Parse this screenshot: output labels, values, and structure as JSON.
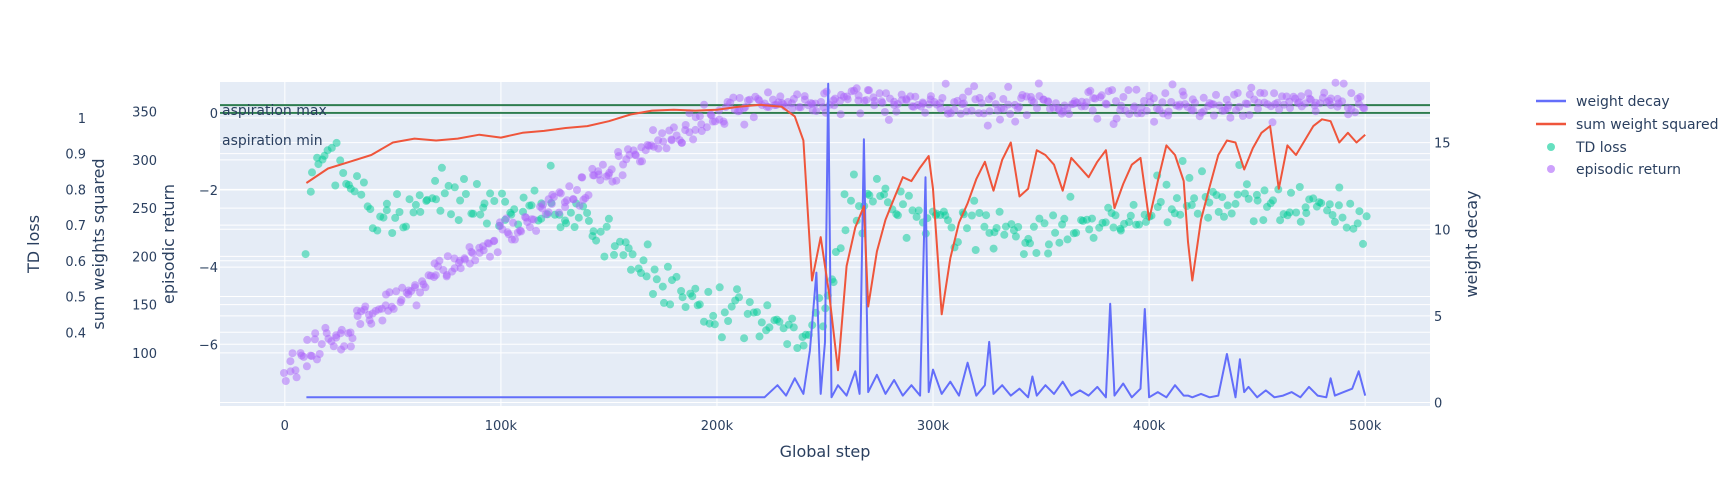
{
  "chart_data": {
    "type": "line+scatter",
    "xlabel": "Global step",
    "x_ticks": [
      {
        "value": 0,
        "label": "0"
      },
      {
        "value": 100000,
        "label": "100k"
      },
      {
        "value": 200000,
        "label": "200k"
      },
      {
        "value": 300000,
        "label": "300k"
      },
      {
        "value": 400000,
        "label": "400k"
      },
      {
        "value": 500000,
        "label": "500k"
      }
    ],
    "xlim": [
      -30000,
      530000
    ],
    "axes": {
      "td_loss": {
        "title": "TD loss",
        "range": [
          0.3,
          1.05
        ],
        "ticks": [
          0.4,
          0.5,
          0.6,
          0.7,
          0.8,
          0.9,
          1
        ]
      },
      "sum_weights_squared": {
        "title": "sum weights squared",
        "range": [
          75,
          362
        ],
        "ticks": [
          100,
          150,
          200,
          250,
          300,
          350
        ]
      },
      "episodic_return": {
        "title": "episodic return",
        "range": [
          -7.6,
          0.8
        ],
        "ticks": [
          -6,
          -4,
          -2,
          0
        ],
        "tick_labels": [
          "−6",
          "−4",
          "−2",
          "0"
        ]
      },
      "weight_decay": {
        "title": "weight decay",
        "range": [
          -0.2,
          18.5
        ],
        "ticks": [
          0,
          5,
          10,
          15
        ]
      }
    },
    "annotations": [
      {
        "text": "aspiration max",
        "y": 0.2
      },
      {
        "text": "aspiration min",
        "y": 0.0
      }
    ],
    "legend_position": "top-right",
    "colors": {
      "weight_decay": "#636efa",
      "sum_weight_squared": "#ef553b",
      "td_loss": "#00cc96",
      "episodic_return": "#ab63fa",
      "aspiration": "#2e7d4f",
      "plot_bg": "#e5ecf6",
      "grid": "#ffffff",
      "text": "#2a3f5f"
    },
    "series": [
      {
        "name": "weight decay",
        "type": "line",
        "axis": "weight_decay",
        "x": [
          10000,
          100000,
          200000,
          222000,
          228000,
          232000,
          236000,
          240000,
          243000,
          246000,
          248000,
          250000,
          251500,
          253000,
          256000,
          260000,
          264000,
          266000,
          268000,
          270000,
          274000,
          278000,
          282000,
          286000,
          290000,
          294000,
          296500,
          298000,
          300000,
          304000,
          308000,
          312000,
          316000,
          320000,
          324000,
          326000,
          328000,
          332000,
          336000,
          340000,
          344000,
          346000,
          348000,
          352000,
          356000,
          360000,
          364000,
          368000,
          372000,
          376000,
          380000,
          382000,
          384000,
          388000,
          392000,
          396000,
          398000,
          400000,
          404000,
          408000,
          412000,
          416000,
          418000,
          420000,
          424000,
          428000,
          432000,
          436000,
          440000,
          442000,
          444000,
          446000,
          450000,
          454000,
          458000,
          462000,
          466000,
          470000,
          474000,
          478000,
          482000,
          484000,
          486000,
          490000,
          494000,
          497000,
          500000
        ],
        "y": [
          0.3,
          0.3,
          0.3,
          0.3,
          1.0,
          0.4,
          1.4,
          0.5,
          3.0,
          7.5,
          0.5,
          3.5,
          18.4,
          0.3,
          1.0,
          0.4,
          1.8,
          0.5,
          15.2,
          0.6,
          1.6,
          0.5,
          1.3,
          0.4,
          1.0,
          0.4,
          13.0,
          0.6,
          1.9,
          0.5,
          1.2,
          0.4,
          2.3,
          0.4,
          1.0,
          3.5,
          0.5,
          1.0,
          0.4,
          0.8,
          0.3,
          1.5,
          0.4,
          1.0,
          0.5,
          1.2,
          0.4,
          0.7,
          0.4,
          0.9,
          0.3,
          5.7,
          0.4,
          1.1,
          0.3,
          0.8,
          5.4,
          0.3,
          0.6,
          0.3,
          1.0,
          0.4,
          0.4,
          0.3,
          0.5,
          0.3,
          0.4,
          2.8,
          0.3,
          2.5,
          0.6,
          0.9,
          0.3,
          0.7,
          0.3,
          0.4,
          0.6,
          0.3,
          0.9,
          0.4,
          0.3,
          1.4,
          0.4,
          0.6,
          0.8,
          1.8,
          0.4
        ]
      },
      {
        "name": "sum weight squared",
        "type": "line",
        "axis": "sum_weights_squared",
        "x": [
          10000,
          20000,
          30000,
          40000,
          50000,
          60000,
          70000,
          80000,
          90000,
          100000,
          110000,
          120000,
          130000,
          140000,
          150000,
          160000,
          170000,
          180000,
          190000,
          200000,
          210000,
          220000,
          230000,
          236000,
          240000,
          244000,
          248000,
          252000,
          256000,
          260000,
          264000,
          268000,
          270000,
          274000,
          278000,
          282000,
          286000,
          290000,
          294000,
          298000,
          300000,
          304000,
          308000,
          312000,
          316000,
          320000,
          324000,
          328000,
          332000,
          336000,
          340000,
          344000,
          348000,
          352000,
          356000,
          360000,
          364000,
          368000,
          372000,
          376000,
          380000,
          384000,
          388000,
          392000,
          396000,
          400000,
          404000,
          408000,
          412000,
          416000,
          418000,
          420000,
          424000,
          428000,
          432000,
          436000,
          440000,
          444000,
          448000,
          452000,
          456000,
          460000,
          464000,
          468000,
          472000,
          476000,
          480000,
          484000,
          488000,
          492000,
          496000,
          500000
        ],
        "y": [
          276,
          291,
          298,
          305,
          318,
          322,
          320,
          322,
          326,
          323,
          328,
          330,
          333,
          335,
          340,
          347,
          351,
          352,
          351,
          352,
          355,
          357,
          355,
          345,
          320,
          175,
          220,
          160,
          82,
          190,
          230,
          252,
          148,
          205,
          238,
          260,
          282,
          278,
          292,
          304,
          270,
          140,
          198,
          235,
          255,
          280,
          298,
          268,
          300,
          318,
          262,
          270,
          310,
          305,
          295,
          268,
          302,
          292,
          282,
          298,
          310,
          250,
          275,
          295,
          302,
          238,
          278,
          315,
          305,
          278,
          215,
          175,
          238,
          272,
          305,
          320,
          318,
          290,
          312,
          328,
          335,
          270,
          315,
          305,
          320,
          335,
          342,
          340,
          318,
          328,
          318,
          326
        ]
      },
      {
        "name": "TD loss",
        "type": "scatter",
        "axis": "td_loss",
        "opacity": 0.5,
        "generator": "noisy-curve",
        "count": 350,
        "seed": 7,
        "curve": {
          "x": [
            10000,
            15000,
            20000,
            30000,
            40000,
            60000,
            80000,
            100000,
            130000,
            150000,
            170000,
            190000,
            210000,
            225000,
            240000,
            250000,
            260000,
            280000,
            300000,
            340000,
            380000,
            420000,
            460000,
            500000
          ],
          "y": [
            0.63,
            0.9,
            0.91,
            0.82,
            0.72,
            0.76,
            0.77,
            0.75,
            0.73,
            0.68,
            0.57,
            0.49,
            0.44,
            0.4,
            0.4,
            0.44,
            0.78,
            0.75,
            0.72,
            0.68,
            0.7,
            0.78,
            0.76,
            0.73
          ]
        },
        "noise": 0.035
      },
      {
        "name": "episodic return",
        "type": "scatter",
        "axis": "episodic_return",
        "opacity": 0.5,
        "generator": "noisy-curve",
        "count": 520,
        "seed": 13,
        "curve": {
          "x": [
            0,
            10000,
            30000,
            60000,
            100000,
            130000,
            160000,
            190000,
            210000,
            230000,
            260000,
            300000,
            400000,
            500000
          ],
          "y": [
            -6.7,
            -6.3,
            -5.6,
            -4.6,
            -3.2,
            -2.2,
            -1.2,
            -0.3,
            0.1,
            0.3,
            0.3,
            0.25,
            0.25,
            0.25
          ]
        },
        "noise": 0.2
      }
    ]
  },
  "legend": [
    {
      "label": "weight decay",
      "kind": "line",
      "color": "#636efa"
    },
    {
      "label": "sum weight squared",
      "kind": "line",
      "color": "#ef553b"
    },
    {
      "label": "TD loss",
      "kind": "marker",
      "color": "#00cc96"
    },
    {
      "label": "episodic return",
      "kind": "marker",
      "color": "#ab63fa"
    }
  ]
}
